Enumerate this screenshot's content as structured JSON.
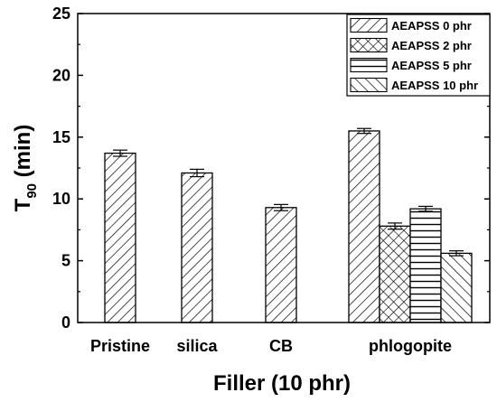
{
  "chart_data": {
    "type": "bar",
    "xlabel": "Filler (10 phr)",
    "ylabel": {
      "main": "T",
      "sub": "90",
      "unit": " (min)"
    },
    "ylim": [
      0,
      25
    ],
    "yticks": [
      0,
      5,
      10,
      15,
      20,
      25
    ],
    "categories": [
      "Pristine",
      "silica",
      "CB",
      "phlogopite"
    ],
    "series": [
      {
        "name": "AEAPSS 0 phr",
        "pattern": "diag-right",
        "values": [
          13.7,
          12.1,
          9.3,
          15.5
        ],
        "errors": [
          0.25,
          0.3,
          0.25,
          0.2
        ]
      },
      {
        "name": "AEAPSS 2 phr",
        "pattern": "crosshatch",
        "values": [
          null,
          null,
          null,
          7.8
        ],
        "errors": [
          null,
          null,
          null,
          0.25
        ]
      },
      {
        "name": "AEAPSS 5 phr",
        "pattern": "horizontal",
        "values": [
          null,
          null,
          null,
          9.2
        ],
        "errors": [
          null,
          null,
          null,
          0.2
        ]
      },
      {
        "name": "AEAPSS 10 phr",
        "pattern": "diag-left",
        "values": [
          null,
          null,
          null,
          5.6
        ],
        "errors": [
          null,
          null,
          null,
          0.2
        ]
      }
    ],
    "legend_position": "top-right",
    "grid": false
  }
}
